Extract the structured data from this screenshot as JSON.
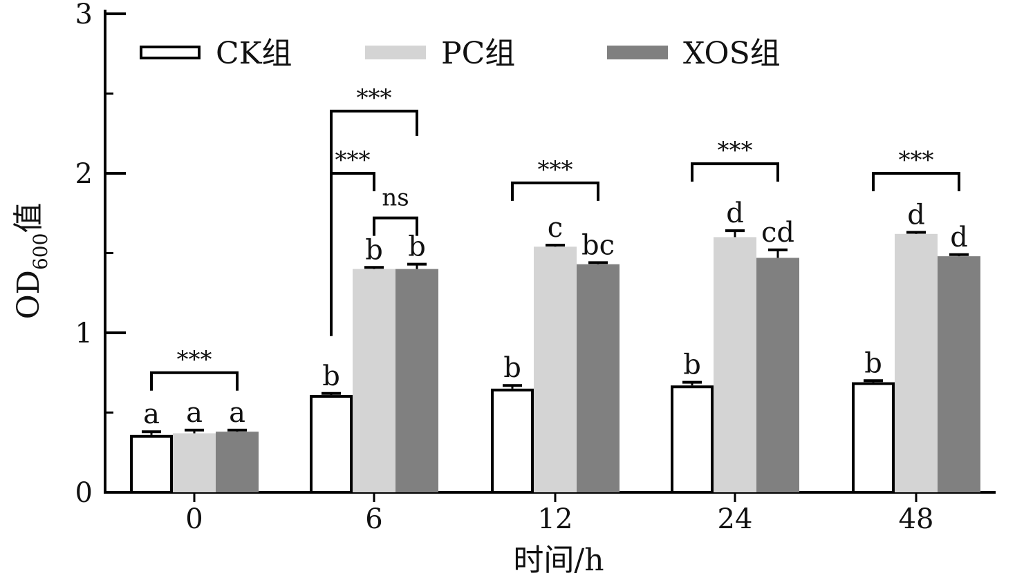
{
  "chart_data": {
    "type": "bar",
    "title": "",
    "xlabel": "时间/h",
    "ylabel_main": "OD",
    "ylabel_sub": "600",
    "ylabel_suffix": "值",
    "ylim": [
      0,
      3
    ],
    "yticks": [
      "0",
      "1",
      "2",
      "3"
    ],
    "categories": [
      "0",
      "6",
      "12",
      "24",
      "48"
    ],
    "legend_position": "top",
    "series": [
      {
        "name": "CK组",
        "fill": "#ffffff",
        "stroke": "#000000",
        "values": [
          0.36,
          0.61,
          0.65,
          0.67,
          0.69
        ],
        "errors": [
          0.02,
          0.01,
          0.02,
          0.02,
          0.01
        ],
        "letters": [
          "a",
          "b",
          "b",
          "b",
          "b"
        ]
      },
      {
        "name": "PC组",
        "fill": "#d4d4d4",
        "stroke": "none",
        "values": [
          0.37,
          1.4,
          1.54,
          1.6,
          1.62
        ],
        "errors": [
          0.02,
          0.01,
          0.01,
          0.04,
          0.01
        ],
        "letters": [
          "a",
          "b",
          "c",
          "d",
          "d"
        ]
      },
      {
        "name": "XOS组",
        "fill": "#808080",
        "stroke": "none",
        "values": [
          0.38,
          1.4,
          1.43,
          1.47,
          1.48
        ],
        "errors": [
          0.01,
          0.03,
          0.01,
          0.05,
          0.01
        ],
        "letters": [
          "a",
          "b",
          "bc",
          "cd",
          "d"
        ]
      }
    ],
    "comparisons": [
      {
        "category": 0,
        "from_series": 0,
        "to_series": 2,
        "label": "***",
        "y": 0.75
      },
      {
        "category": 1,
        "from_series": 0,
        "to_series": 2,
        "label": "***",
        "y": 2.39
      },
      {
        "category": 1,
        "from_series": 0,
        "to_series": 1,
        "label": "***",
        "y": 2.0
      },
      {
        "category": 1,
        "from_series": 1,
        "to_series": 2,
        "label": "ns",
        "y": 1.72
      },
      {
        "category": 2,
        "from_series": 0,
        "to_series": 2,
        "label": "***",
        "y": 1.94
      },
      {
        "category": 3,
        "from_series": 0,
        "to_series": 2,
        "label": "***",
        "y": 2.06
      },
      {
        "category": 4,
        "from_series": 0,
        "to_series": 2,
        "label": "***",
        "y": 2.0
      }
    ]
  }
}
